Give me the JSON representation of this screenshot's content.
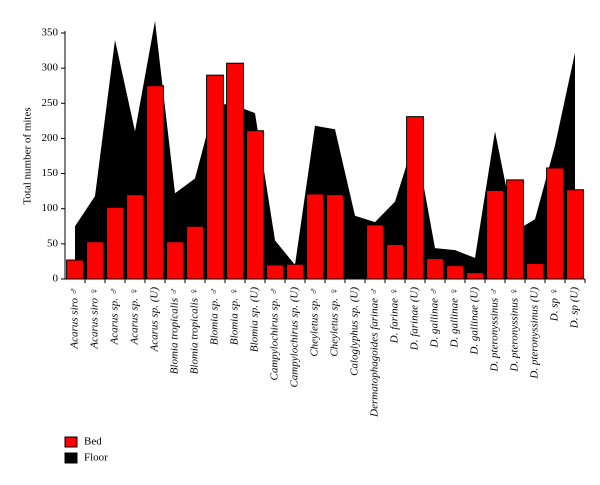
{
  "chart_data": {
    "type": "bar",
    "y_label": "Total number of mites",
    "categories": [
      "Acarus siro ♂",
      "Acarus siro ♀",
      "Acarus sp. ♂",
      "Acarus sp. ♀",
      "Acarus sp. (U)",
      "Blomia tropicalis ♂",
      "Blomia tropicalis ♀",
      "Blomia sp. ♂",
      "Blomia sp. ♀",
      "Blomia sp. (U)",
      "Campylochirus sp. ♂",
      "Campylochirus sp. (U)",
      "Cheyletus sp. ♂",
      "Cheyletus sp. ♀",
      "Caloglyphus sp. (U)",
      "Dermatophagoides farinae ♂",
      "D. farinae ♀",
      "D. farinae (U)",
      "D. gallinae ♂",
      "D. gallinae ♀",
      "D. gallinae (U)",
      "D. pteronyssinus ♂",
      "D. pteronyssinus ♀",
      "D. pteronyssinus (U)",
      "D. sp ♀",
      "D. sp (U)"
    ],
    "series": [
      {
        "name": "Bed",
        "color": "#ff0000",
        "type": "bar",
        "values": [
          27,
          53,
          102,
          120,
          275,
          53,
          75,
          290,
          307,
          211,
          20,
          21,
          121,
          120,
          0,
          77,
          49,
          231,
          29,
          19,
          9,
          126,
          141,
          22,
          158,
          127
        ]
      },
      {
        "name": "Floor",
        "color": "#000000",
        "type": "area",
        "values": [
          75,
          118,
          340,
          210,
          367,
          122,
          143,
          250,
          247,
          236,
          55,
          20,
          218,
          213,
          90,
          81,
          110,
          200,
          44,
          41,
          30,
          210,
          68,
          85,
          190,
          322
        ]
      }
    ],
    "ylim": [
      0,
      350
    ],
    "yticks": [
      0,
      50,
      100,
      150,
      200,
      250,
      300,
      350
    ],
    "grid": false,
    "legend": "bottom-left"
  }
}
